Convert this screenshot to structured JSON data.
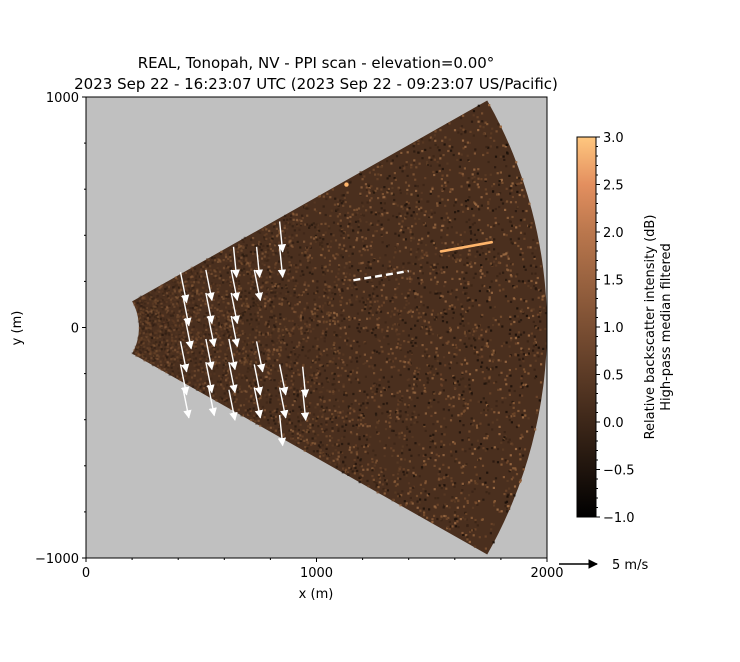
{
  "chart_data": {
    "type": "heatmap",
    "title_line1": "REAL, Tonopah, NV - PPI scan - elevation=0.00°",
    "title_line2": "2023 Sep 22 - 16:23:07 UTC (2023 Sep 22 - 09:23:07 US/Pacific)",
    "xlabel": "x (m)",
    "ylabel": "y (m)",
    "xlim": [
      0,
      2000
    ],
    "ylim": [
      -1000,
      1000
    ],
    "x_ticks": [
      0,
      1000,
      2000
    ],
    "x_tick_labels": [
      "0",
      "1000",
      "2000"
    ],
    "y_ticks": [
      -1000,
      0,
      1000
    ],
    "y_tick_labels": [
      "−1000",
      "0",
      "1000"
    ],
    "scan": {
      "min_range": 230,
      "max_range": 2000,
      "half_angle_deg": 29.5
    },
    "colorbar": {
      "label_line1": "Relative backscatter intensity (dB)",
      "label_line2": "High-pass median filtered",
      "min": -1.0,
      "max": 3.0,
      "ticks": [
        -1.0,
        -0.5,
        0.0,
        0.5,
        1.0,
        1.5,
        2.0,
        2.5,
        3.0
      ],
      "tick_labels": [
        "−1.0",
        "−0.5",
        "0.0",
        "0.5",
        "1.0",
        "1.5",
        "2.0",
        "2.5",
        "3.0"
      ]
    },
    "quiver_key": {
      "label": "5 m/s",
      "speed": 5
    },
    "wind_vectors": [
      {
        "x": 410,
        "y": 240,
        "u": 0.8,
        "v": -4.0
      },
      {
        "x": 420,
        "y": 140,
        "u": 0.8,
        "v": -4.0
      },
      {
        "x": 430,
        "y": 40,
        "u": 0.8,
        "v": -4.0
      },
      {
        "x": 410,
        "y": -60,
        "u": 0.8,
        "v": -4.0
      },
      {
        "x": 410,
        "y": -160,
        "u": 0.8,
        "v": -4.0
      },
      {
        "x": 420,
        "y": -260,
        "u": 0.8,
        "v": -4.0
      },
      {
        "x": 520,
        "y": 250,
        "u": 0.8,
        "v": -4.0
      },
      {
        "x": 520,
        "y": 150,
        "u": 0.8,
        "v": -4.0
      },
      {
        "x": 530,
        "y": 50,
        "u": 0.8,
        "v": -4.0
      },
      {
        "x": 520,
        "y": -50,
        "u": 0.8,
        "v": -4.0
      },
      {
        "x": 520,
        "y": -150,
        "u": 0.8,
        "v": -4.0
      },
      {
        "x": 530,
        "y": -250,
        "u": 0.8,
        "v": -4.0
      },
      {
        "x": 630,
        "y": 250,
        "u": 0.8,
        "v": -4.0
      },
      {
        "x": 630,
        "y": 150,
        "u": 0.8,
        "v": -4.0
      },
      {
        "x": 630,
        "y": 50,
        "u": 0.8,
        "v": -4.0
      },
      {
        "x": 620,
        "y": -50,
        "u": 0.8,
        "v": -4.0
      },
      {
        "x": 620,
        "y": -150,
        "u": 0.8,
        "v": -4.0
      },
      {
        "x": 620,
        "y": -270,
        "u": 0.8,
        "v": -4.0
      },
      {
        "x": 640,
        "y": 350,
        "u": 0.4,
        "v": -4.0
      },
      {
        "x": 740,
        "y": 350,
        "u": 0.4,
        "v": -4.0
      },
      {
        "x": 730,
        "y": 250,
        "u": 0.8,
        "v": -4.0
      },
      {
        "x": 740,
        "y": -60,
        "u": 0.8,
        "v": -4.0
      },
      {
        "x": 730,
        "y": -160,
        "u": 0.8,
        "v": -4.0
      },
      {
        "x": 730,
        "y": -260,
        "u": 0.8,
        "v": -4.0
      },
      {
        "x": 840,
        "y": 460,
        "u": 0.4,
        "v": -4.0
      },
      {
        "x": 840,
        "y": 350,
        "u": 0.4,
        "v": -4.0
      },
      {
        "x": 840,
        "y": -160,
        "u": 0.8,
        "v": -4.0
      },
      {
        "x": 840,
        "y": -260,
        "u": 0.8,
        "v": -4.0
      },
      {
        "x": 840,
        "y": -380,
        "u": 0.4,
        "v": -4.0
      },
      {
        "x": 940,
        "y": -170,
        "u": 0.4,
        "v": -4.0
      },
      {
        "x": 940,
        "y": -270,
        "u": 0.4,
        "v": -4.0
      }
    ],
    "features": [
      {
        "kind": "dashed-line",
        "x1": 1160,
        "y1": 205,
        "x2": 1400,
        "y2": 245,
        "color": "#ffffff"
      },
      {
        "kind": "streak",
        "x1": 1540,
        "y1": 330,
        "x2": 1760,
        "y2": 370,
        "color": "#ffb56b"
      },
      {
        "kind": "spot",
        "x": 1130,
        "y": 620,
        "color": "#ffb56b"
      }
    ]
  }
}
